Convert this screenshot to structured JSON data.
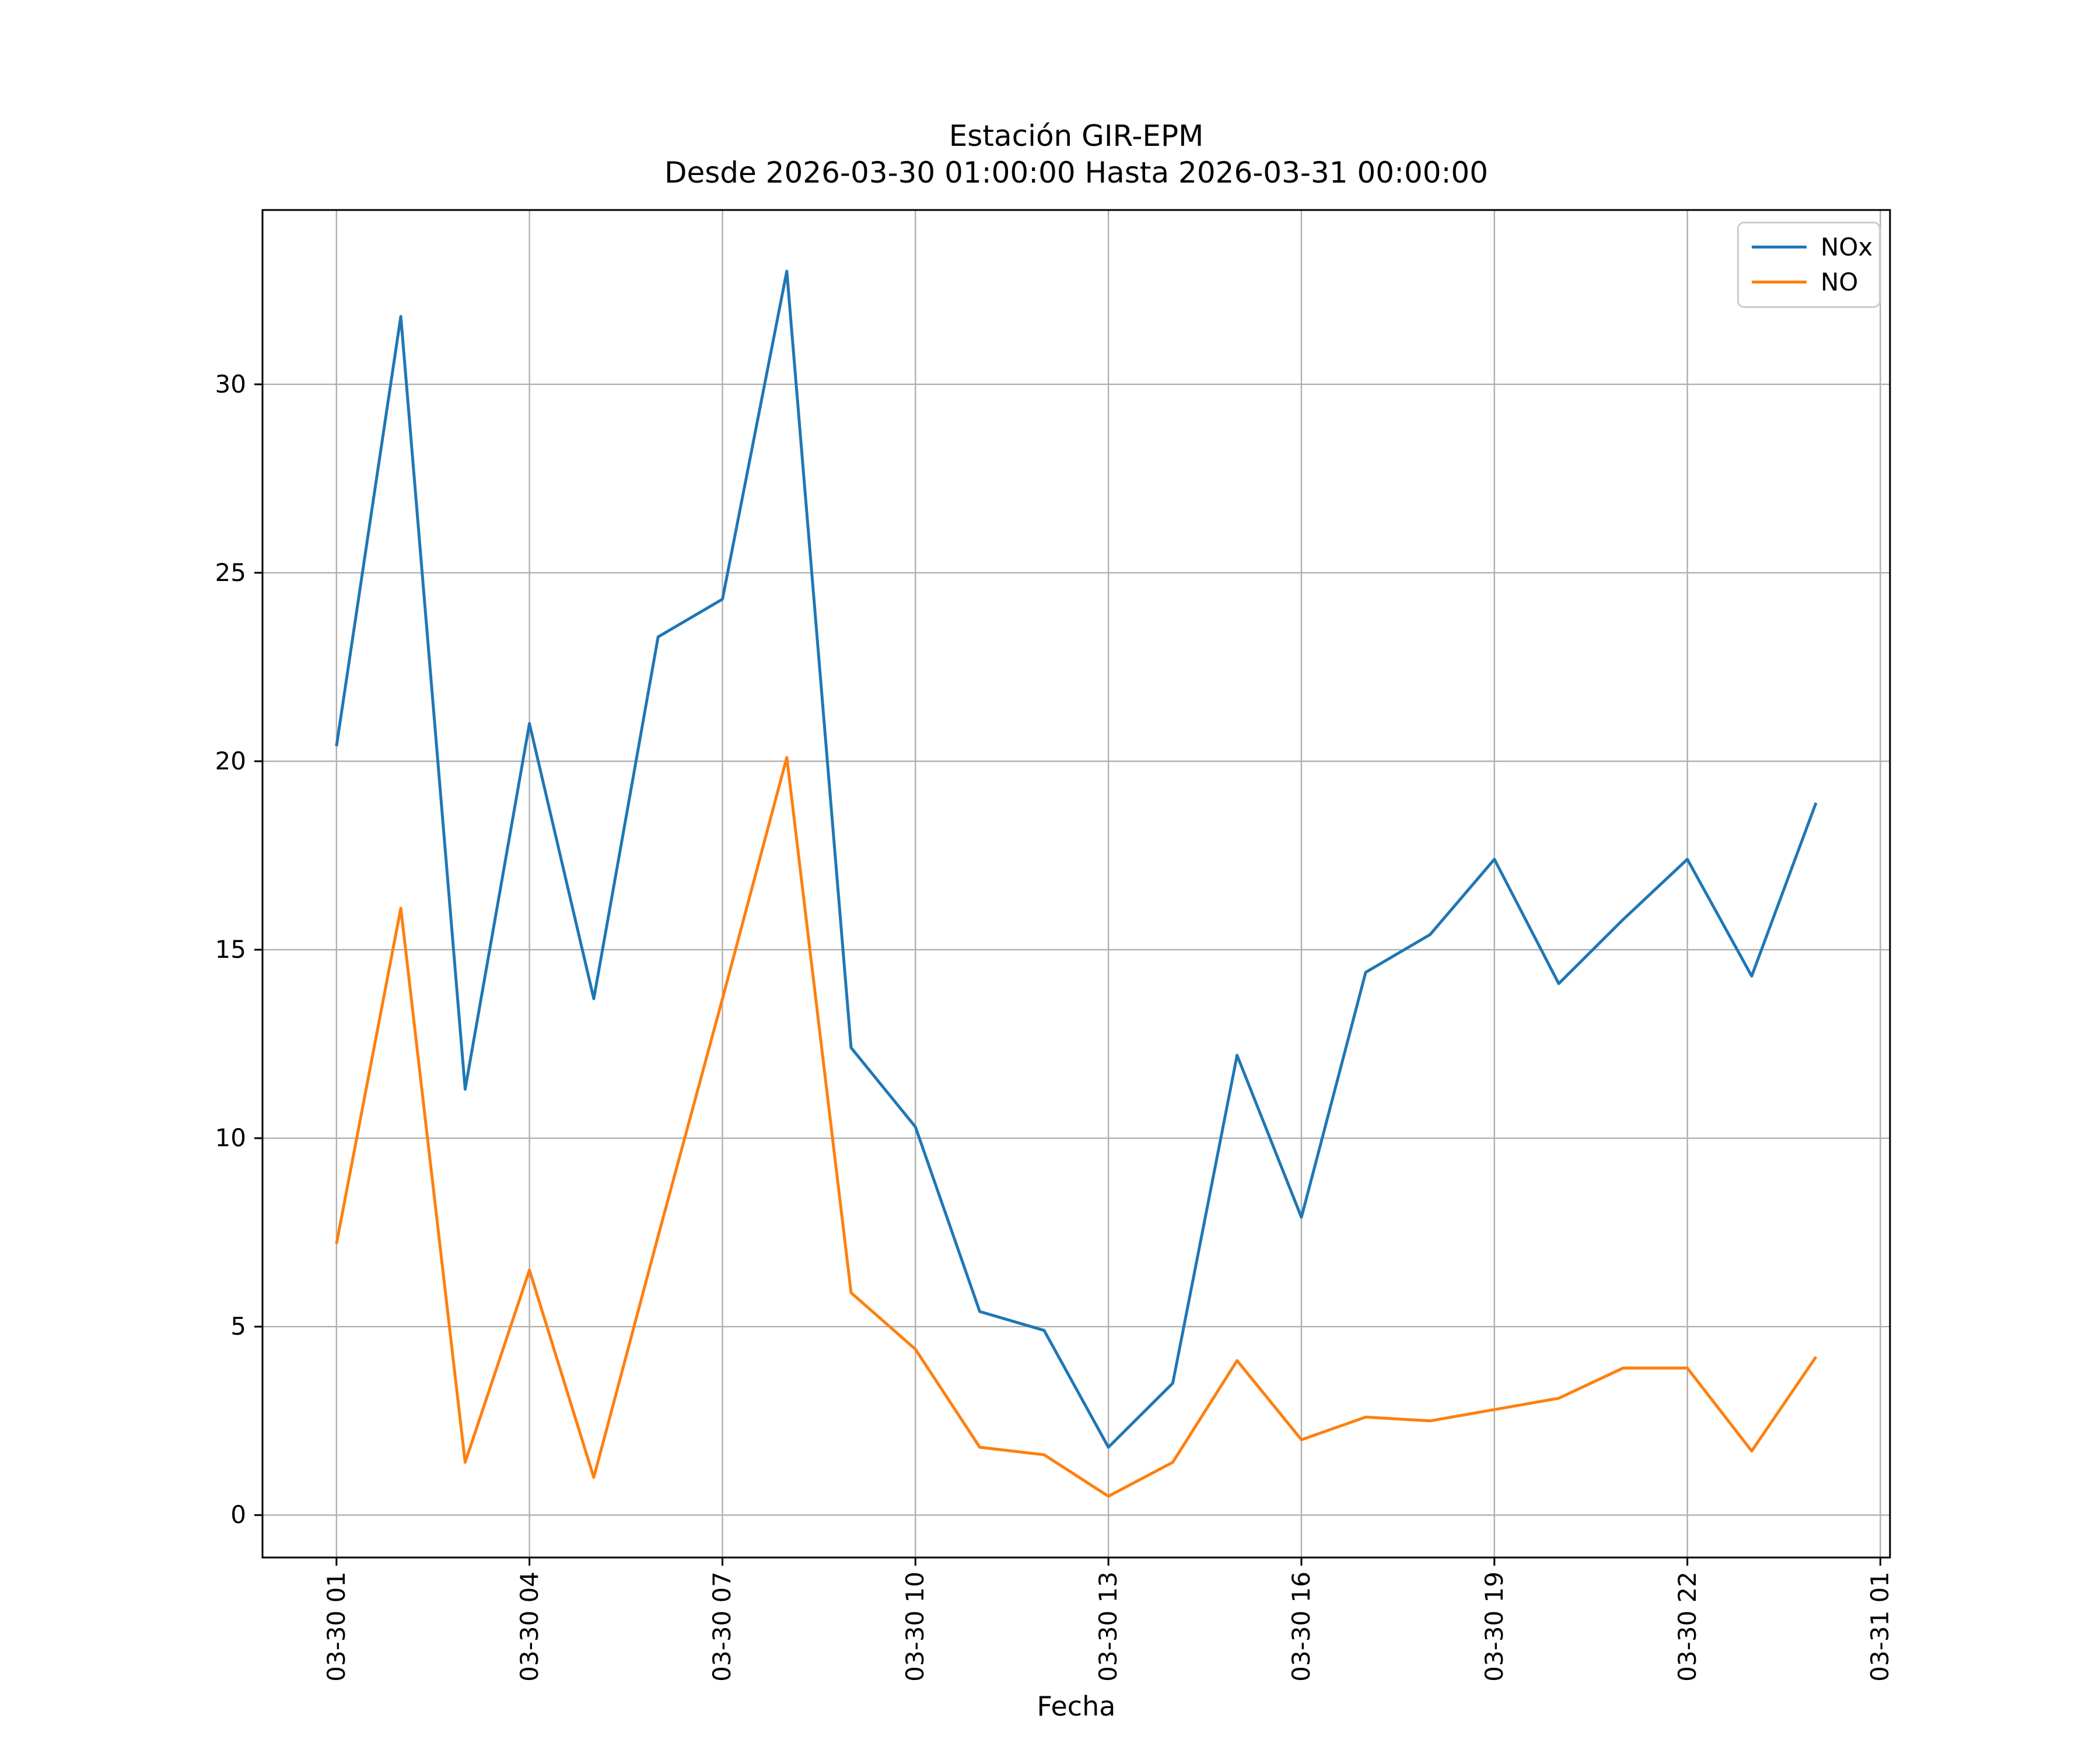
{
  "chart_data": {
    "type": "line",
    "title": "Estación GIR-EPM",
    "subtitle": "Desde 2026-03-30 01:00:00 Hasta 2026-03-31 00:00:00",
    "xlabel": "Fecha",
    "ylabel": "",
    "grid": true,
    "legend_position": "upper right",
    "x_tick_labels": [
      "03-30 01",
      "03-30 04",
      "03-30 07",
      "03-30 10",
      "03-30 13",
      "03-30 16",
      "03-30 19",
      "03-30 22",
      "03-31 01"
    ],
    "x_tick_hours": [
      1,
      4,
      7,
      10,
      13,
      16,
      19,
      22,
      25
    ],
    "y_ticks": [
      0,
      5,
      10,
      15,
      20,
      25,
      30
    ],
    "xlim_hours": [
      -0.15,
      25.15
    ],
    "ylim": [
      -1.125,
      34.625
    ],
    "x_hours": [
      1,
      2,
      3,
      4,
      5,
      6,
      7,
      8,
      9,
      10,
      11,
      12,
      13,
      14,
      15,
      16,
      17,
      18,
      19,
      20,
      21,
      22,
      23,
      24
    ],
    "series": [
      {
        "name": "NOx",
        "color": "#1f77b4",
        "values": [
          20.4,
          31.8,
          11.3,
          21.0,
          13.7,
          23.3,
          24.3,
          33.0,
          12.4,
          10.3,
          5.4,
          4.9,
          1.8,
          3.5,
          12.2,
          7.9,
          14.4,
          15.4,
          17.4,
          14.1,
          15.8,
          17.4,
          14.3,
          18.9
        ]
      },
      {
        "name": "NO",
        "color": "#ff7f0e",
        "values": [
          7.2,
          16.1,
          1.4,
          6.5,
          1.0,
          7.4,
          13.7,
          20.1,
          5.9,
          4.4,
          1.8,
          1.6,
          0.5,
          1.4,
          4.1,
          2.0,
          2.6,
          2.5,
          2.8,
          3.1,
          3.9,
          3.9,
          1.7,
          4.2
        ]
      }
    ]
  },
  "colors": {
    "background": "#ffffff",
    "grid": "#b0b0b0",
    "spine": "#000000",
    "text": "#000000",
    "legend_border": "#cccccc"
  }
}
